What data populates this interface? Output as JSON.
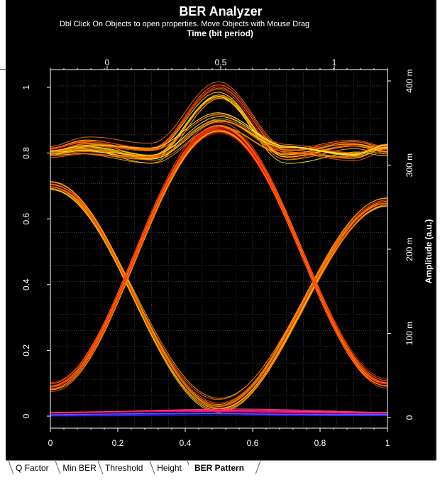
{
  "window": {
    "icon": "chart-icon",
    "hint": "Dbl Click On Objects to open properties.  Move Objects with Mouse Drag"
  },
  "tabs": [
    {
      "label": "Q Factor",
      "active": false
    },
    {
      "label": "Min BER",
      "active": false
    },
    {
      "label": "Threshold",
      "active": false
    },
    {
      "label": "Height",
      "active": false
    },
    {
      "label": "BER Pattern",
      "active": true
    }
  ],
  "chart_data": {
    "type": "line",
    "title": "BER Analyzer",
    "xlabel_top": "Time (bit period)",
    "ylabel_right": "Amplitude (a.u.)",
    "x_bottom_ticks": [
      "0",
      "0.2",
      "0.4",
      "0.6",
      "0.8",
      "1"
    ],
    "x_top_ticks": [
      "0",
      "0.5",
      "1"
    ],
    "y_left_ticks": [
      "0",
      "0.2",
      "0.4",
      "0.6",
      "0.8",
      "1"
    ],
    "y_right_ticks": [
      "0",
      "100 m",
      "200 m",
      "300 m",
      "400 m"
    ],
    "xlim": [
      0,
      1
    ],
    "ylim": [
      0,
      1.03
    ],
    "grid": true,
    "background": "#000000",
    "colors": [
      "#ffff00",
      "#ffc000",
      "#ff8c00",
      "#ff5500",
      "#ff2020",
      "#ff00ff",
      "#0000ff"
    ],
    "series": [
      {
        "values": [
          [
            0,
            0.81
          ],
          [
            0.1,
            0.83
          ],
          [
            0.3,
            0.8
          ],
          [
            0.5,
            0.99
          ],
          [
            0.7,
            0.8
          ],
          [
            0.9,
            0.83
          ],
          [
            1,
            0.81
          ]
        ]
      },
      {
        "values": [
          [
            0,
            0.8
          ],
          [
            0.1,
            0.81
          ],
          [
            0.3,
            0.79
          ],
          [
            0.5,
            0.9
          ],
          [
            0.7,
            0.81
          ],
          [
            0.9,
            0.79
          ],
          [
            1,
            0.82
          ]
        ]
      },
      {
        "values": [
          [
            0,
            0.7
          ],
          [
            0.5,
            0.03
          ],
          [
            1,
            0.65
          ]
        ]
      },
      {
        "values": [
          [
            0,
            0.09
          ],
          [
            0.5,
            0.88
          ],
          [
            1,
            0.1
          ]
        ]
      },
      {
        "values": [
          [
            0,
            0.01
          ],
          [
            0.5,
            0.015
          ],
          [
            1,
            0.01
          ]
        ]
      },
      {
        "values": [
          [
            0,
            0.002
          ],
          [
            0.5,
            0.005
          ],
          [
            1,
            0.003
          ]
        ]
      }
    ]
  }
}
